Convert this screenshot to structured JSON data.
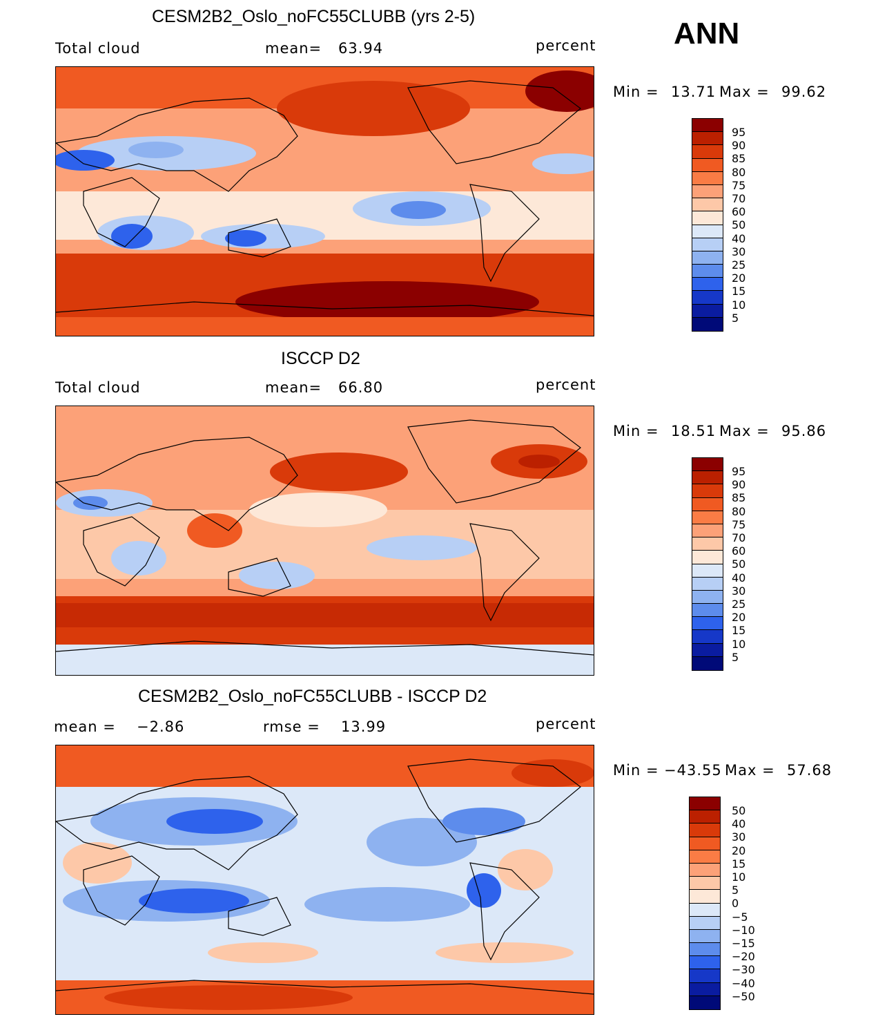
{
  "season_label": "ANN",
  "panels": [
    {
      "title": "CESM2B2_Oslo_noFC55CLUBB (yrs 2-5)",
      "variable": "Total cloud",
      "stat_label": "mean=",
      "stat_value": "63.94",
      "units": "percent",
      "min_label": "Min =",
      "min_value": "13.71",
      "max_label": "Max =",
      "max_value": "99.62",
      "colorbar_levels": [
        "95",
        "90",
        "85",
        "80",
        "75",
        "70",
        "60",
        "50",
        "40",
        "30",
        "25",
        "20",
        "15",
        "10",
        "5"
      ]
    },
    {
      "title": "ISCCP D2",
      "variable": "Total cloud",
      "stat_label": "mean=",
      "stat_value": "66.80",
      "units": "percent",
      "min_label": "Min =",
      "min_value": "18.51",
      "max_label": "Max =",
      "max_value": "95.86",
      "colorbar_levels": [
        "95",
        "90",
        "85",
        "80",
        "75",
        "70",
        "60",
        "50",
        "40",
        "30",
        "25",
        "20",
        "15",
        "10",
        "5"
      ]
    },
    {
      "title": "CESM2B2_Oslo_noFC55CLUBB - ISCCP D2",
      "variable": "mean =",
      "variable_value": "−2.86",
      "stat_label": "rmse =",
      "stat_value": "13.99",
      "units": "percent",
      "min_label": "Min =",
      "min_value": "−43.55",
      "max_label": "Max =",
      "max_value": "57.68",
      "colorbar_levels": [
        "50",
        "40",
        "30",
        "20",
        "15",
        "10",
        "5",
        "0",
        "−5",
        "−10",
        "−15",
        "−20",
        "−30",
        "−40",
        "−50"
      ]
    }
  ],
  "colorbar_colors": [
    "#8b0000",
    "#bb2000",
    "#d93a0a",
    "#f05a22",
    "#fa7c45",
    "#fca178",
    "#fdc8a8",
    "#fde8d8",
    "#dce8f8",
    "#b7cff5",
    "#8eb2f0",
    "#5d8cec",
    "#2e62ec",
    "#1638c8",
    "#0a1ca0",
    "#000a78"
  ],
  "chart_data": [
    {
      "type": "heatmap",
      "title": "CESM2B2_Oslo_noFC55CLUBB (yrs 2-5)",
      "field": "Total cloud",
      "units": "percent",
      "mean": 63.94,
      "min": 13.71,
      "max": 99.62,
      "levels": [
        5,
        10,
        15,
        20,
        25,
        30,
        40,
        50,
        60,
        70,
        75,
        80,
        85,
        90,
        95
      ]
    },
    {
      "type": "heatmap",
      "title": "ISCCP D2",
      "field": "Total cloud",
      "units": "percent",
      "mean": 66.8,
      "min": 18.51,
      "max": 95.86,
      "levels": [
        5,
        10,
        15,
        20,
        25,
        30,
        40,
        50,
        60,
        70,
        75,
        80,
        85,
        90,
        95
      ]
    },
    {
      "type": "heatmap",
      "title": "CESM2B2_Oslo_noFC55CLUBB - ISCCP D2",
      "units": "percent",
      "mean": -2.86,
      "rmse": 13.99,
      "min": -43.55,
      "max": 57.68,
      "levels": [
        -50,
        -40,
        -30,
        -20,
        -15,
        -10,
        -5,
        0,
        5,
        10,
        15,
        20,
        30,
        40,
        50
      ]
    }
  ]
}
